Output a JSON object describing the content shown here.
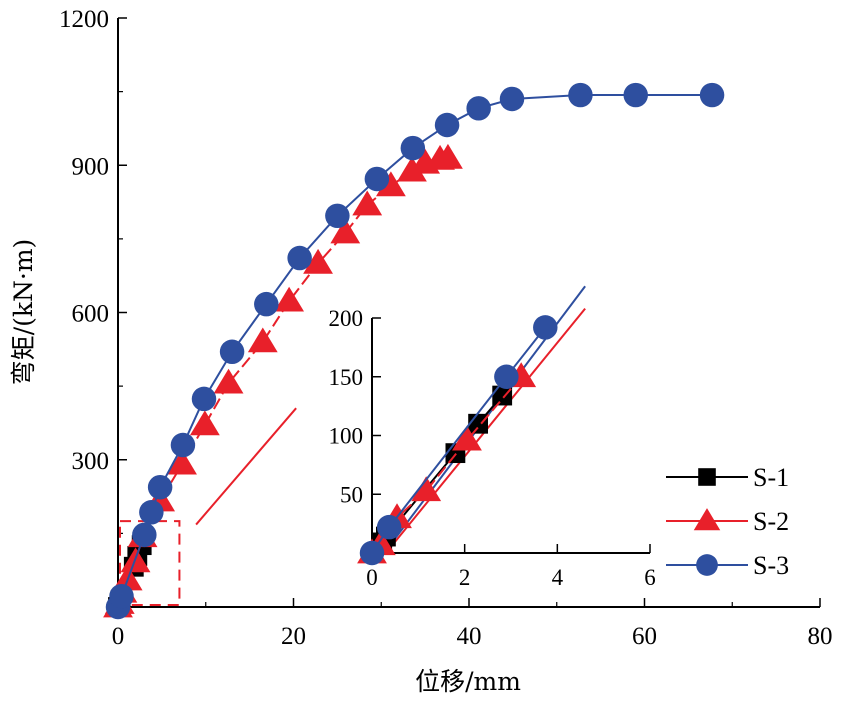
{
  "chart_data": {
    "type": "line",
    "xlabel": "位移/mm",
    "ylabel": "弯矩/(kN·m)",
    "xlim": [
      0,
      80
    ],
    "ylim": [
      0,
      1200
    ],
    "xticks": [
      0,
      20,
      40,
      60,
      80
    ],
    "xticks_minor": [
      10,
      30,
      50,
      70
    ],
    "yticks": [
      300,
      600,
      900,
      1200
    ],
    "yticks_minor": [
      150,
      450,
      750,
      1050
    ],
    "grid": false,
    "legend": {
      "placement": "bottom-right",
      "entries": [
        "S-1",
        "S-2",
        "S-3"
      ]
    },
    "series": [
      {
        "name": "S-1",
        "color": "#000000",
        "marker": "square",
        "x": [
          0,
          0.2,
          0.3,
          1.8,
          2.2,
          2.7
        ],
        "y": [
          0,
          9,
          14,
          82,
          104,
          126
        ]
      },
      {
        "name": "S-2",
        "color": "#e8202a",
        "marker": "triangle",
        "x": [
          0,
          0.2,
          0.5,
          1.1,
          2.0,
          2.8,
          4.8,
          7.3,
          9.9,
          12.6,
          16.5,
          19.5,
          22.8,
          25.9,
          28.4,
          31.1,
          33.5,
          35.0,
          36.7,
          37.6
        ],
        "y": [
          0,
          7,
          30,
          55,
          92,
          143,
          216,
          291,
          371,
          456,
          540,
          623,
          700,
          762,
          819,
          858,
          888,
          904,
          912,
          914
        ]
      },
      {
        "name": "S-3",
        "color": "#2e4f9f",
        "marker": "circle",
        "x": [
          0,
          0.4,
          3.0,
          3.8,
          4.8,
          7.4,
          9.8,
          13.0,
          16.9,
          20.7,
          25.0,
          29.5,
          33.6,
          37.5,
          41.1,
          44.9,
          52.7,
          59.0,
          67.7
        ],
        "y": [
          0,
          22,
          147,
          193,
          244,
          330,
          424,
          520,
          617,
          711,
          797,
          872,
          935,
          982,
          1016,
          1035,
          1043,
          1043,
          1043
        ]
      }
    ],
    "zoom_box": {
      "x_range": [
        0,
        7
      ],
      "y_range": [
        0,
        175
      ],
      "style": "dashed",
      "color": "#e8202a"
    },
    "inset": {
      "xlim": [
        0,
        6
      ],
      "ylim": [
        0,
        200
      ],
      "xticks": [
        0,
        2,
        4,
        6
      ],
      "yticks": [
        50,
        100,
        150,
        200
      ],
      "series": [
        {
          "name": "S-1",
          "x": [
            0.22,
            0.3,
            1.8,
            2.29,
            2.81
          ],
          "y": [
            9,
            14,
            85,
            110,
            134
          ]
        },
        {
          "name": "S-2",
          "x": [
            0,
            0.19,
            0.54,
            1.17,
            2.05,
            3.22
          ],
          "y": [
            0,
            7,
            30,
            53,
            96,
            150
          ]
        },
        {
          "name": "S-3",
          "x": [
            0,
            0.37,
            2.9,
            3.74
          ],
          "y": [
            0,
            22,
            150,
            192
          ]
        }
      ],
      "fit_lines": [
        {
          "name": "S-2-fit",
          "color": "#e8202a",
          "x": [
            0.3,
            4.6
          ],
          "y": [
            0,
            208
          ]
        },
        {
          "name": "S-3-fit",
          "color": "#2e4f9f",
          "x": [
            0.3,
            4.6
          ],
          "y": [
            2,
            227
          ]
        }
      ]
    },
    "connector_line": {
      "color": "#e8202a",
      "from": [
        8.9,
        168
      ],
      "to": [
        20.3,
        405
      ]
    }
  }
}
